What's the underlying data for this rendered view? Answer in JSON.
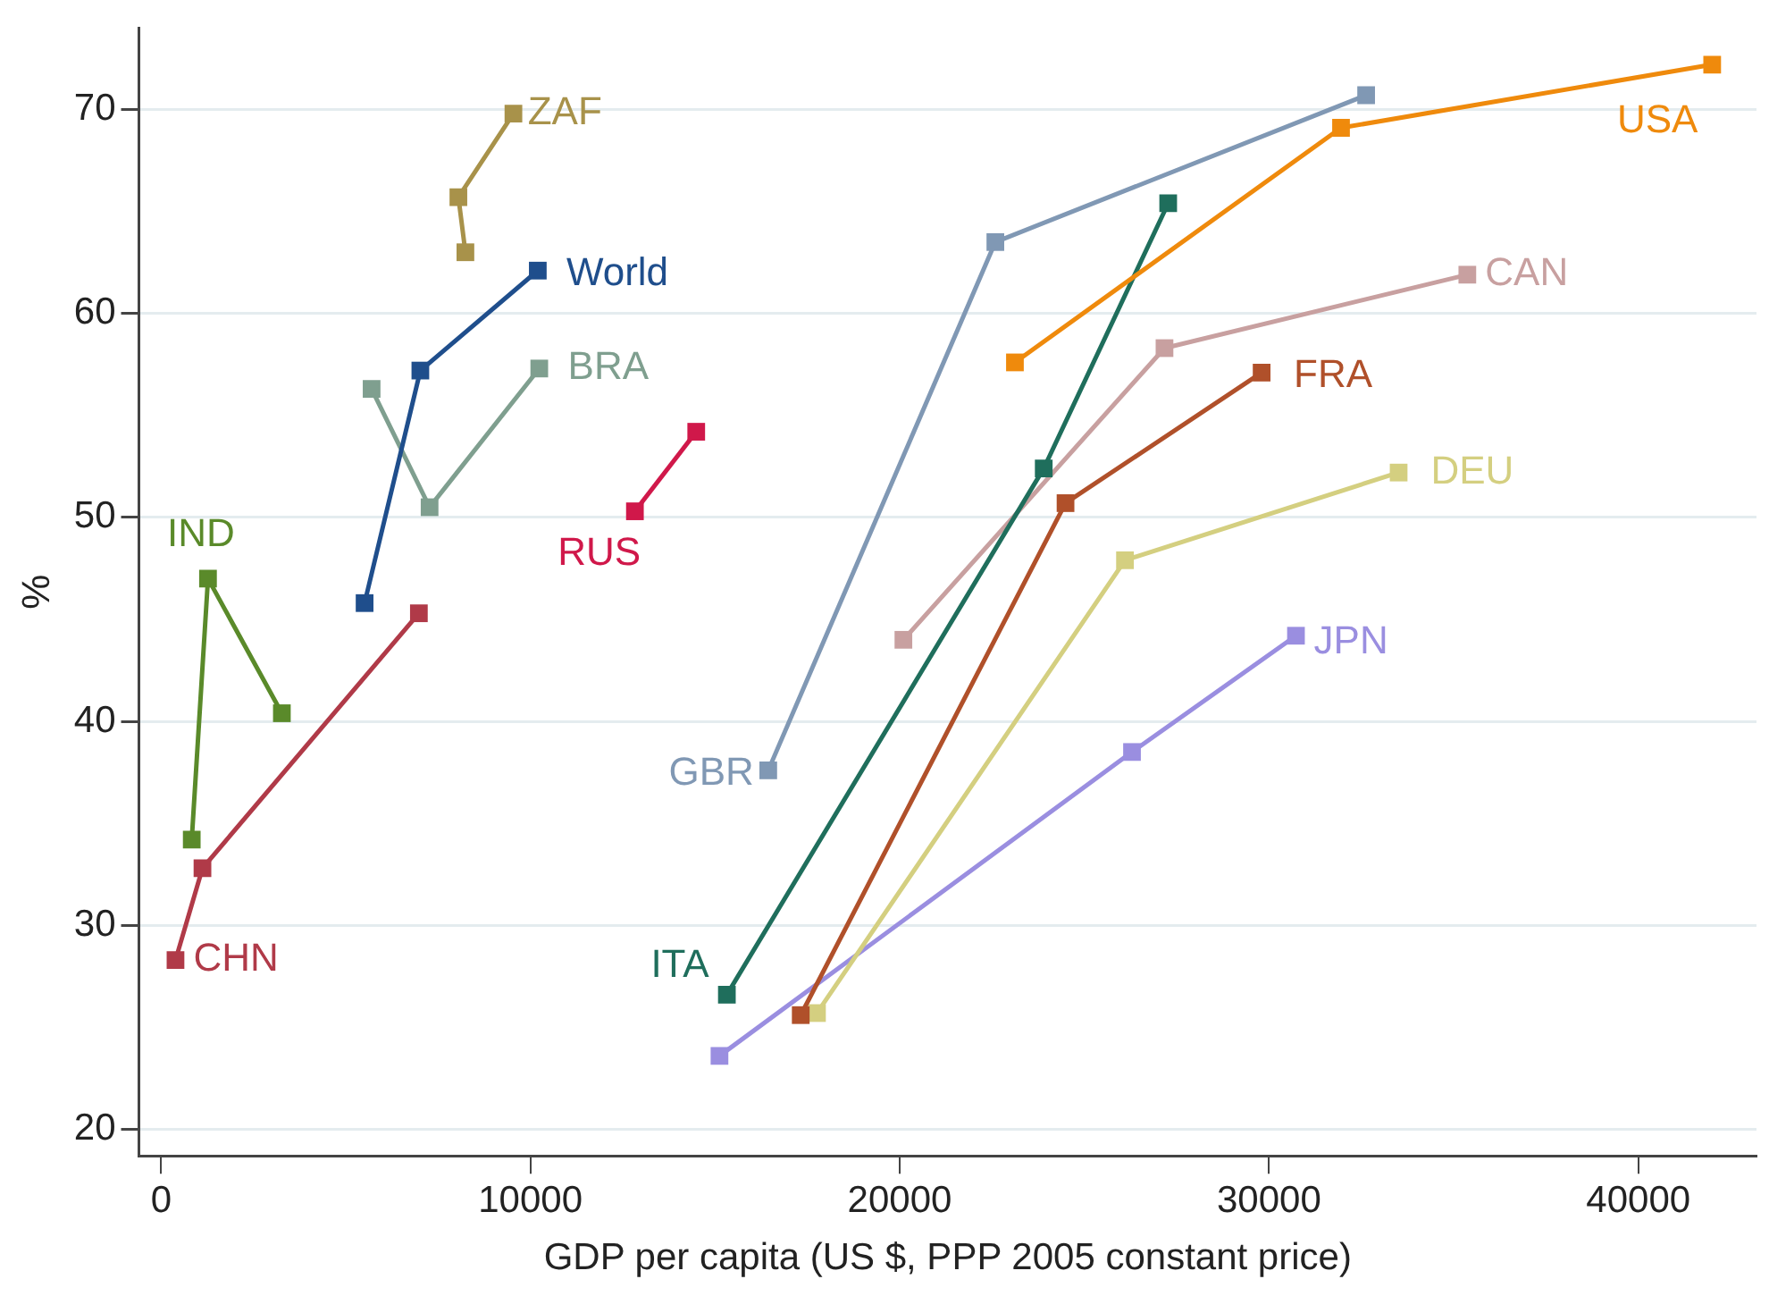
{
  "chart_data": {
    "type": "line",
    "xlabel": "GDP per capita (US $, PPP 2005 constant price)",
    "ylabel": "%",
    "xlim": [
      -600,
      43200
    ],
    "xticks": [
      0,
      10000,
      20000,
      30000,
      40000
    ],
    "ylim": [
      18.7,
      74
    ],
    "yticks": [
      20,
      30,
      40,
      50,
      60,
      70
    ],
    "grid": "y",
    "legend": false,
    "marker": "square",
    "line_style": "solid",
    "series": [
      {
        "name": "ZAF",
        "color": "#a8924a",
        "x": [
          8240,
          8050,
          9540
        ],
        "values": [
          63.0,
          65.7,
          69.8
        ]
      },
      {
        "name": "World",
        "color": "#1f4e8c",
        "x": [
          5510,
          7020,
          10200
        ],
        "values": [
          45.8,
          57.2,
          62.1
        ]
      },
      {
        "name": "BRA",
        "color": "#7f9f8f",
        "x": [
          5700,
          7270,
          10240
        ],
        "values": [
          56.3,
          50.5,
          57.3
        ]
      },
      {
        "name": "RUS",
        "color": "#d0184a",
        "x": [
          12830,
          14490
        ],
        "values": [
          50.3,
          54.2
        ]
      },
      {
        "name": "IND",
        "color": "#5a8a2a",
        "x": [
          830,
          1270,
          3270
        ],
        "values": [
          34.2,
          47.0,
          40.4
        ]
      },
      {
        "name": "CHN",
        "color": "#b03a48",
        "x": [
          390,
          1120,
          6980
        ],
        "values": [
          28.3,
          32.8,
          45.3
        ]
      },
      {
        "name": "GBR",
        "color": "#8098b4",
        "x": [
          16440,
          22590,
          32630
        ],
        "values": [
          37.6,
          63.5,
          70.7
        ]
      },
      {
        "name": "USA",
        "color": "#ef8a0c",
        "x": [
          23120,
          31950,
          42000
        ],
        "values": [
          57.6,
          69.1,
          72.2
        ]
      },
      {
        "name": "ITA",
        "color": "#1f6e5c",
        "x": [
          15320,
          23900,
          27270
        ],
        "values": [
          26.6,
          52.4,
          65.4
        ]
      },
      {
        "name": "CAN",
        "color": "#c8a0a0",
        "x": [
          20100,
          27170,
          35370
        ],
        "values": [
          44.0,
          58.3,
          61.9
        ]
      },
      {
        "name": "FRA",
        "color": "#b0502a",
        "x": [
          17320,
          24490,
          29800
        ],
        "values": [
          25.6,
          50.7,
          57.1
        ]
      },
      {
        "name": "DEU",
        "color": "#d4cf80",
        "x": [
          17760,
          26100,
          33510
        ],
        "values": [
          25.7,
          47.9,
          52.2
        ]
      },
      {
        "name": "JPN",
        "color": "#9a8ee0",
        "x": [
          15120,
          26290,
          30730
        ],
        "values": [
          23.6,
          38.5,
          44.2
        ]
      }
    ]
  }
}
